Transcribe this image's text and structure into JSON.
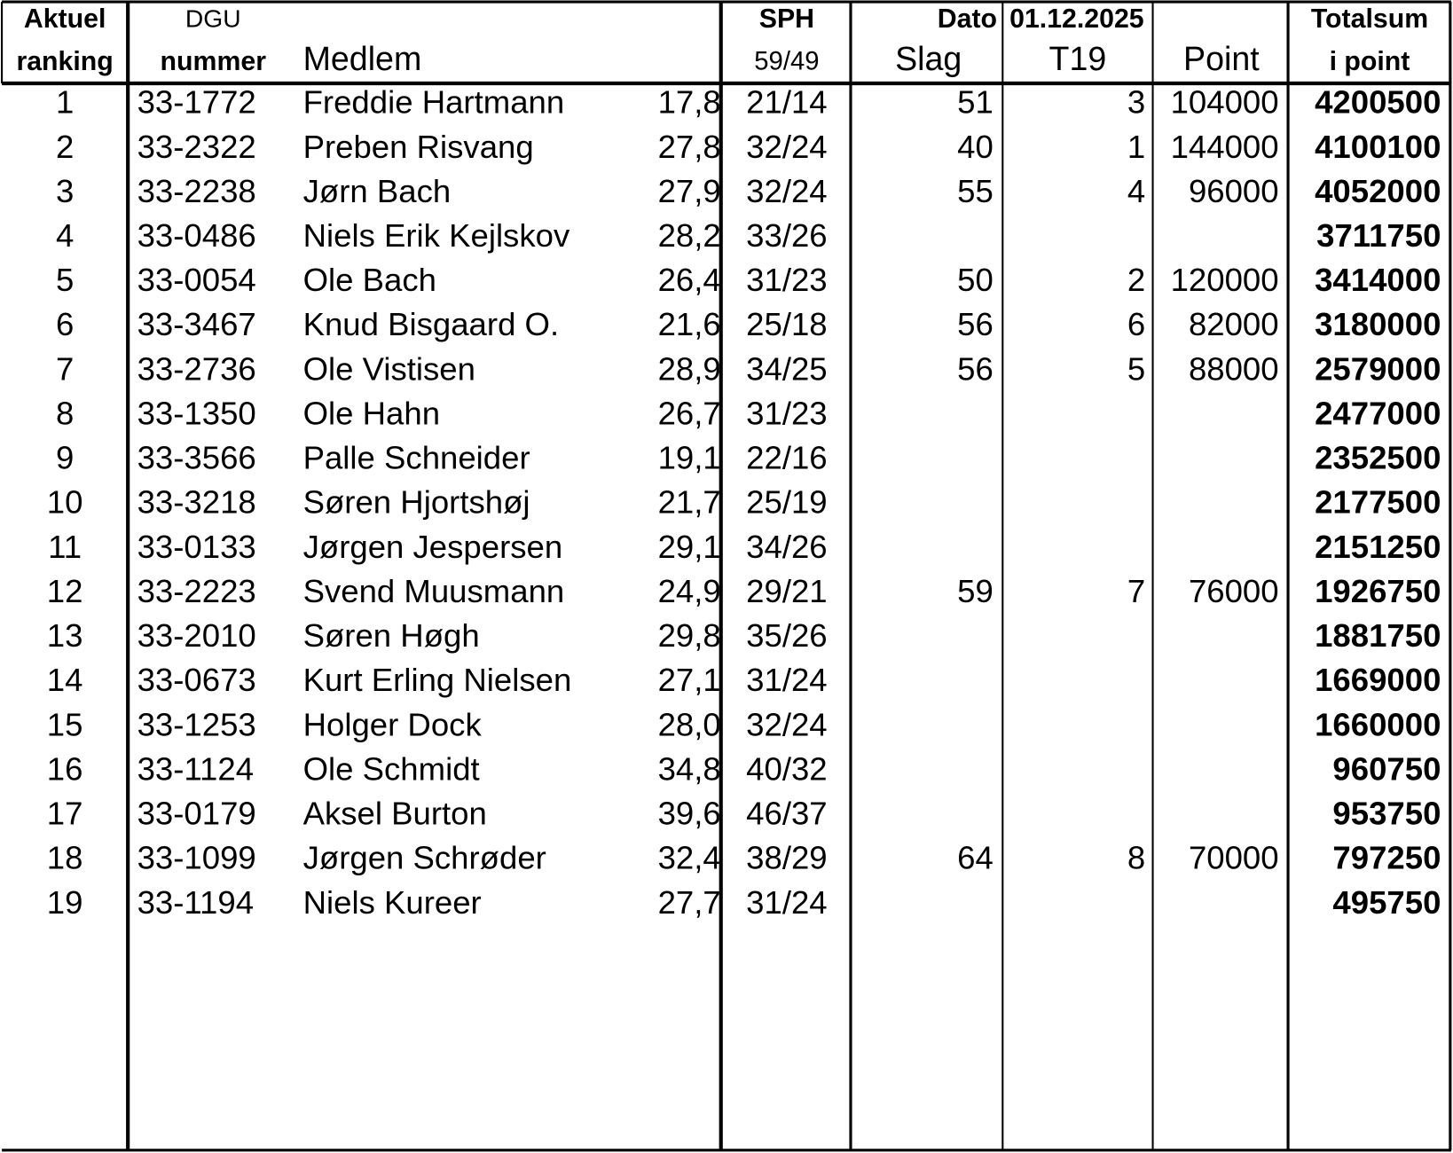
{
  "table": {
    "header": {
      "rank_top": "Aktuel",
      "rank_bottom": "ranking",
      "dgu_top": "DGU",
      "dgu_bottom": "nummer",
      "member": "Medlem",
      "sph_top": "SPH",
      "sph_bottom": "59/49",
      "date_label": "Dato",
      "date": "01.12.2025",
      "strokes": "Slag",
      "t19": "T19",
      "points": "Point",
      "total_top": "Totalsum",
      "total_bottom": "i point"
    },
    "rows": [
      [
        "1",
        "33-1772",
        "Freddie Hartmann",
        "17,8",
        "21/14",
        "51",
        "3",
        "104000",
        "4200500"
      ],
      [
        "2",
        "33-2322",
        "Preben Risvang",
        "27,8",
        "32/24",
        "40",
        "1",
        "144000",
        "4100100"
      ],
      [
        "3",
        "33-2238",
        "Jørn Bach",
        "27,9",
        "32/24",
        "55",
        "4",
        "96000",
        "4052000"
      ],
      [
        "4",
        "33-0486",
        "Niels Erik Kejlskov",
        "28,2",
        "33/26",
        null,
        null,
        null,
        "3711750"
      ],
      [
        "5",
        "33-0054",
        "Ole Bach",
        "26,4",
        "31/23",
        "50",
        "2",
        "120000",
        "3414000"
      ],
      [
        "6",
        "33-3467",
        "Knud Bisgaard O.",
        "21,6",
        "25/18",
        "56",
        "6",
        "82000",
        "3180000"
      ],
      [
        "7",
        "33-2736",
        "Ole Vistisen",
        "28,9",
        "34/25",
        "56",
        "5",
        "88000",
        "2579000"
      ],
      [
        "8",
        "33-1350",
        "Ole Hahn",
        "26,7",
        "31/23",
        null,
        null,
        null,
        "2477000"
      ],
      [
        "9",
        "33-3566",
        "Palle Schneider",
        "19,1",
        "22/16",
        null,
        null,
        null,
        "2352500"
      ],
      [
        "10",
        "33-3218",
        "Søren Hjortshøj",
        "21,7",
        "25/19",
        null,
        null,
        null,
        "2177500"
      ],
      [
        "11",
        "33-0133",
        "Jørgen Jespersen",
        "29,1",
        "34/26",
        null,
        null,
        null,
        "2151250"
      ],
      [
        "12",
        "33-2223",
        "Svend Muusmann",
        "24,9",
        "29/21",
        "59",
        "7",
        "76000",
        "1926750"
      ],
      [
        "13",
        "33-2010",
        "Søren Høgh",
        "29,8",
        "35/26",
        null,
        null,
        null,
        "1881750"
      ],
      [
        "14",
        "33-0673",
        "Kurt Erling Nielsen",
        "27,1",
        "31/24",
        null,
        null,
        null,
        "1669000"
      ],
      [
        "15",
        "33-1253",
        "Holger Dock",
        "28,0",
        "32/24",
        null,
        null,
        null,
        "1660000"
      ],
      [
        "16",
        "33-1124",
        "Ole Schmidt",
        "34,8",
        "40/32",
        null,
        null,
        null,
        "960750"
      ],
      [
        "17",
        "33-0179",
        "Aksel Burton",
        "39,6",
        "46/37",
        null,
        null,
        null,
        "953750"
      ],
      [
        "18",
        "33-1099",
        "Jørgen Schrøder",
        "32,4",
        "38/29",
        "64",
        "8",
        "70000",
        "797250"
      ],
      [
        "19",
        "33-1194",
        "Niels Kureer",
        "27,7",
        "31/24",
        null,
        null,
        null,
        "495750"
      ]
    ]
  }
}
